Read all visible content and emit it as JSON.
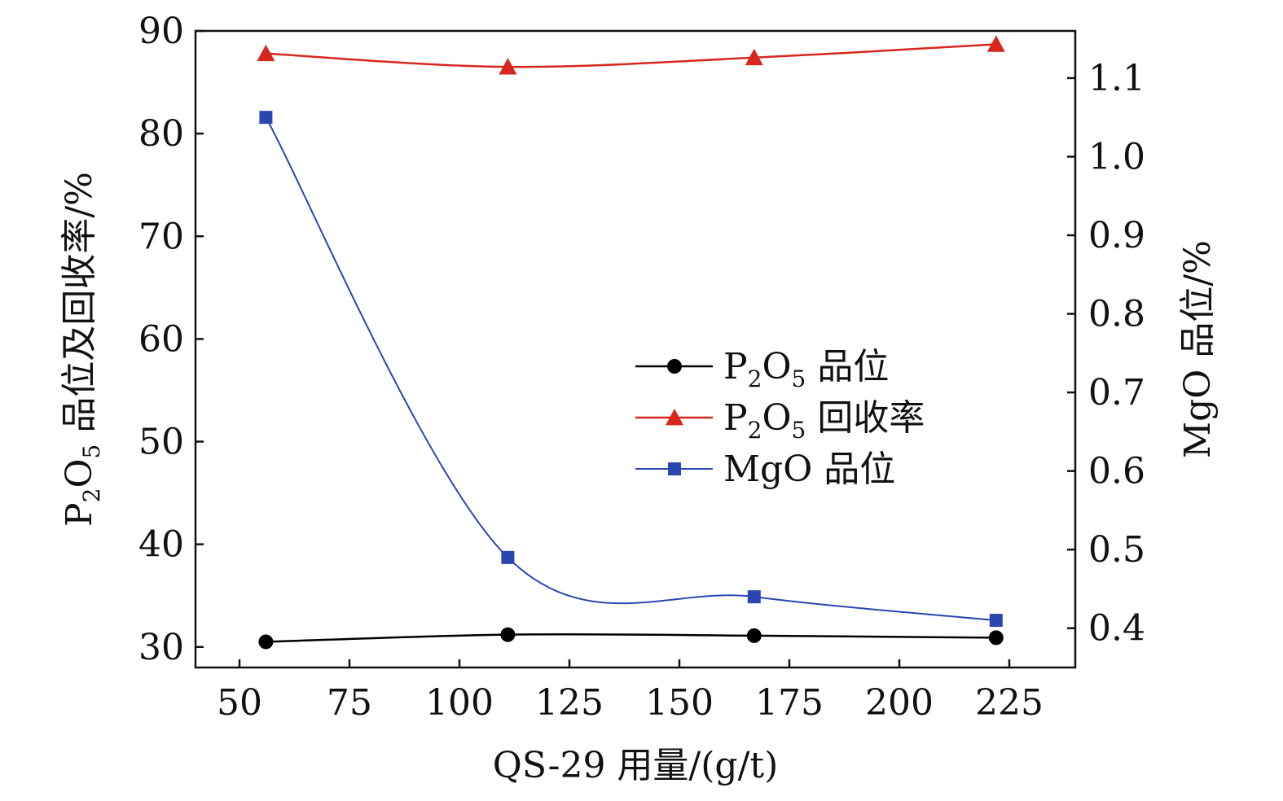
{
  "chart_data": {
    "type": "line",
    "x": [
      56,
      111,
      167,
      222
    ],
    "xlabel": "QS-29 用量/(g/t)",
    "xlim": [
      40,
      240
    ],
    "xticks": [
      50,
      75,
      100,
      125,
      150,
      175,
      200,
      225
    ],
    "ylabel": {
      "p1": "P",
      "s1": "2",
      "p2": "O",
      "s2": "5",
      "p3": " 品位及回收率/%"
    },
    "ylim": [
      28,
      90
    ],
    "yticks": [
      30,
      40,
      50,
      60,
      70,
      80,
      90
    ],
    "y2label": "MgO 品位/%",
    "y2lim": [
      0.35,
      1.16
    ],
    "y2ticks": [
      "0.4",
      "0.5",
      "0.6",
      "0.7",
      "0.8",
      "0.9",
      "1.0",
      "1.1"
    ],
    "legend_position": "center-right",
    "series": [
      {
        "key": "p2o5_grade",
        "name": {
          "p1": "P",
          "s1": "2",
          "p2": "O",
          "s2": "5",
          "p3": " 品位"
        },
        "axis": "left",
        "marker": "circle",
        "color": "#000000",
        "values": [
          30.5,
          31.2,
          31.1,
          30.9
        ]
      },
      {
        "key": "p2o5_recovery",
        "name": {
          "p1": "P",
          "s1": "2",
          "p2": "O",
          "s2": "5",
          "p3": " 回收率"
        },
        "axis": "left",
        "marker": "triangle",
        "color": "#d7261e",
        "values": [
          87.8,
          86.5,
          87.4,
          88.7
        ]
      },
      {
        "key": "mgo_grade",
        "name": {
          "p1": "MgO 品位"
        },
        "axis": "right",
        "marker": "square",
        "color": "#2a46b0",
        "values": [
          1.05,
          0.49,
          0.44,
          0.41
        ]
      }
    ]
  }
}
